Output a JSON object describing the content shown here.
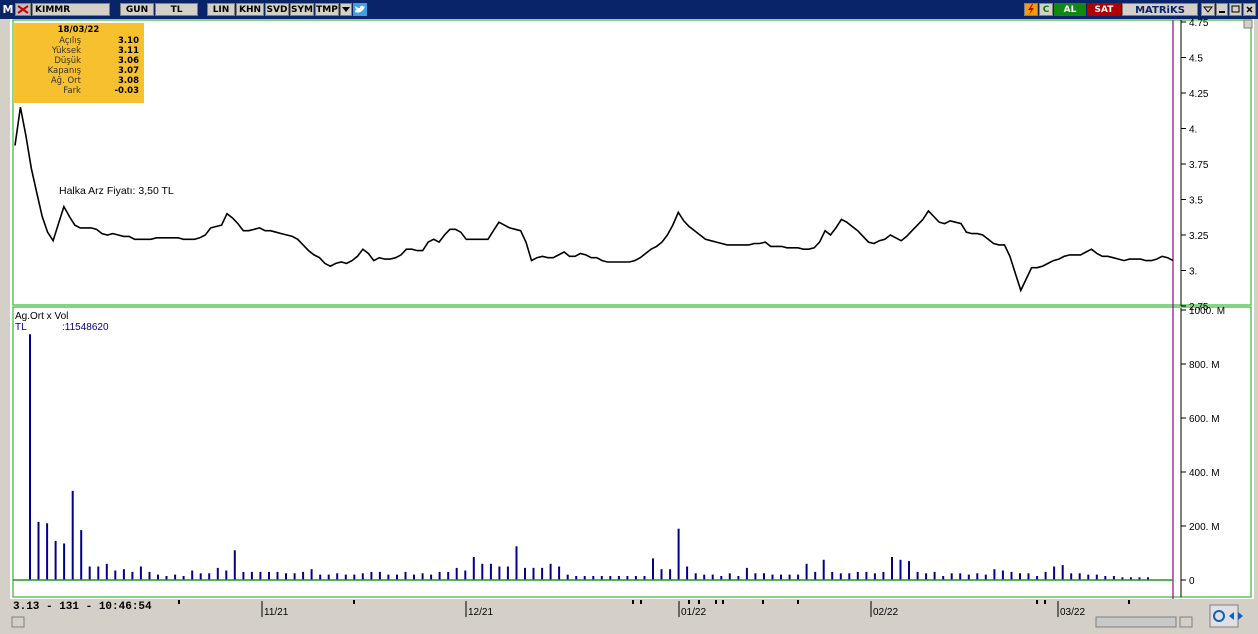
{
  "toolbar": {
    "logo": "M",
    "symbol": "KIMMR",
    "buttons": [
      "GUN",
      "TL",
      "LIN",
      "KHN",
      "SVD",
      "SYM",
      "TMP"
    ],
    "al": "AL",
    "sat": "SAT",
    "brand": "MATRiKS",
    "c": "C"
  },
  "info": {
    "date": "18/03/22",
    "rows": [
      {
        "k": "Açılış",
        "v": "3.10"
      },
      {
        "k": "Yüksek",
        "v": "3.11"
      },
      {
        "k": "Düşük",
        "v": "3.06"
      },
      {
        "k": "Kapanış",
        "v": "3.07"
      },
      {
        "k": "Ağ. Ort",
        "v": "3.08"
      },
      {
        "k": "Fark",
        "v": "-0.03"
      }
    ]
  },
  "volume_legend": {
    "title": "Ag.Ort x Vol",
    "label": "TL",
    "value": ":11548620"
  },
  "status": "3.13 - 131 - 10:46:54",
  "chart_data": [
    {
      "type": "line",
      "annotation": "Halka Arz Fiyatı: 3,50 TL",
      "yticks": [
        "4.75",
        "4.5",
        "4.25",
        "4.",
        "3.75",
        "3.5",
        "3.25",
        "3.",
        "2.75"
      ],
      "ylim": [
        2.75,
        4.75
      ],
      "xticks": [
        "11/21",
        "12/21",
        "01/22",
        "02/22",
        "03/22"
      ],
      "values": [
        3.88,
        4.15,
        3.95,
        3.72,
        3.55,
        3.38,
        3.27,
        3.21,
        3.33,
        3.45,
        3.38,
        3.32,
        3.3,
        3.3,
        3.3,
        3.29,
        3.26,
        3.25,
        3.26,
        3.25,
        3.24,
        3.24,
        3.22,
        3.22,
        3.22,
        3.22,
        3.23,
        3.23,
        3.23,
        3.23,
        3.23,
        3.22,
        3.22,
        3.22,
        3.23,
        3.25,
        3.3,
        3.31,
        3.32,
        3.4,
        3.37,
        3.33,
        3.28,
        3.28,
        3.29,
        3.3,
        3.28,
        3.28,
        3.27,
        3.26,
        3.25,
        3.24,
        3.22,
        3.18,
        3.14,
        3.11,
        3.09,
        3.05,
        3.03,
        3.05,
        3.06,
        3.05,
        3.07,
        3.1,
        3.15,
        3.12,
        3.07,
        3.09,
        3.08,
        3.08,
        3.09,
        3.11,
        3.15,
        3.15,
        3.14,
        3.14,
        3.2,
        3.22,
        3.2,
        3.25,
        3.29,
        3.29,
        3.27,
        3.22,
        3.22,
        3.22,
        3.22,
        3.22,
        3.28,
        3.34,
        3.32,
        3.3,
        3.29,
        3.28,
        3.2,
        3.07,
        3.09,
        3.1,
        3.09,
        3.09,
        3.11,
        3.13,
        3.1,
        3.1,
        3.12,
        3.11,
        3.09,
        3.09,
        3.07,
        3.06,
        3.06,
        3.06,
        3.06,
        3.06,
        3.07,
        3.09,
        3.12,
        3.15,
        3.17,
        3.2,
        3.25,
        3.32,
        3.41,
        3.35,
        3.31,
        3.28,
        3.25,
        3.22,
        3.21,
        3.2,
        3.19,
        3.18,
        3.18,
        3.18,
        3.18,
        3.18,
        3.19,
        3.19,
        3.2,
        3.17,
        3.17,
        3.17,
        3.16,
        3.16,
        3.16,
        3.15,
        3.15,
        3.16,
        3.2,
        3.28,
        3.25,
        3.3,
        3.36,
        3.34,
        3.31,
        3.28,
        3.24,
        3.2,
        3.19,
        3.21,
        3.22,
        3.25,
        3.23,
        3.21,
        3.24,
        3.28,
        3.32,
        3.36,
        3.42,
        3.38,
        3.34,
        3.33,
        3.35,
        3.34,
        3.33,
        3.27,
        3.26,
        3.26,
        3.25,
        3.22,
        3.19,
        3.18,
        3.18,
        3.1,
        2.98,
        2.86,
        2.94,
        3.02,
        3.02,
        3.03,
        3.05,
        3.07,
        3.08,
        3.1,
        3.11,
        3.11,
        3.11,
        3.13,
        3.15,
        3.12,
        3.1,
        3.1,
        3.09,
        3.08,
        3.07,
        3.08,
        3.08,
        3.08,
        3.07,
        3.07,
        3.08,
        3.1,
        3.09,
        3.07
      ]
    },
    {
      "type": "bar",
      "title": "Ag.Ort x Vol",
      "yticks": [
        "1000. M",
        "800. M",
        "600. M",
        "400. M",
        "200. M",
        "0"
      ],
      "ylim": [
        0,
        1000
      ],
      "unit": "M",
      "values": [
        910,
        215,
        210,
        145,
        135,
        330,
        185,
        50,
        50,
        60,
        35,
        40,
        30,
        50,
        30,
        20,
        15,
        20,
        15,
        35,
        25,
        25,
        45,
        35,
        110,
        30,
        30,
        30,
        30,
        30,
        25,
        25,
        30,
        40,
        20,
        20,
        25,
        20,
        20,
        25,
        30,
        30,
        20,
        20,
        30,
        20,
        25,
        20,
        30,
        30,
        45,
        35,
        85,
        60,
        60,
        50,
        50,
        125,
        45,
        45,
        45,
        60,
        50,
        20,
        15,
        15,
        15,
        15,
        15,
        15,
        15,
        15,
        15,
        80,
        40,
        40,
        190,
        50,
        25,
        20,
        20,
        15,
        25,
        15,
        45,
        25,
        25,
        20,
        20,
        20,
        20,
        60,
        30,
        75,
        30,
        25,
        25,
        30,
        30,
        25,
        30,
        85,
        75,
        70,
        30,
        25,
        30,
        15,
        25,
        25,
        20,
        25,
        20,
        40,
        35,
        30,
        25,
        25,
        15,
        30,
        50,
        55,
        25,
        25,
        20,
        20,
        15,
        15,
        10,
        10,
        10,
        10
      ]
    }
  ]
}
